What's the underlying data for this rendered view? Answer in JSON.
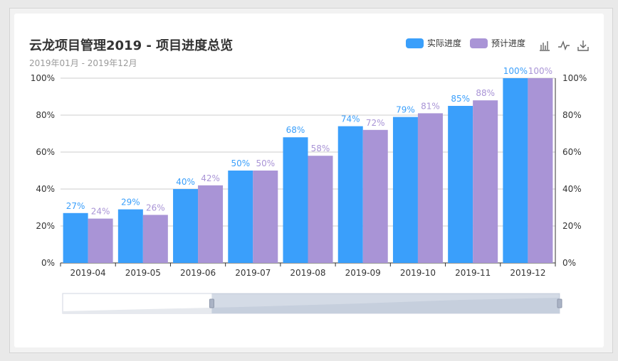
{
  "header": {
    "title": "云龙项目管理2019 - 项目进度总览",
    "subtitle": "2019年01月 - 2019年12月"
  },
  "toolbox": {
    "icons": [
      "bar-chart-icon",
      "line-chart-icon",
      "download-icon"
    ]
  },
  "colors": {
    "actual": "#3a9ffb",
    "planned": "#a994d6",
    "grid": "#cccccc",
    "axis_text": "#333333"
  },
  "chart_data": {
    "type": "bar",
    "title": "云龙项目管理2019 - 项目进度总览",
    "subtitle": "2019年01月 - 2019年12月",
    "categories": [
      "2019-04",
      "2019-05",
      "2019-06",
      "2019-07",
      "2019-08",
      "2019-09",
      "2019-10",
      "2019-11",
      "2019-12"
    ],
    "series": [
      {
        "name": "实际进度",
        "values": [
          27,
          29,
          40,
          50,
          68,
          74,
          79,
          85,
          100
        ]
      },
      {
        "name": "预计进度",
        "values": [
          24,
          26,
          42,
          50,
          58,
          72,
          81,
          88,
          100
        ]
      }
    ],
    "ylim": [
      0,
      100
    ],
    "yticks": [
      "0%",
      "20%",
      "40%",
      "60%",
      "80%",
      "100%"
    ],
    "y_unit": "%",
    "grid": true,
    "legend_position": "top-right",
    "data_zoom": {
      "start_fraction": 0.3,
      "end_fraction": 1.0
    }
  }
}
